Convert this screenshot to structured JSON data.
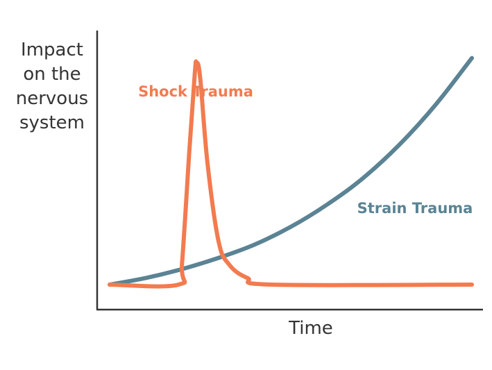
{
  "chart_data": {
    "type": "line",
    "title": "",
    "xlabel": "Time",
    "ylabel_lines": [
      "Impact",
      "on the",
      "nervous",
      "system"
    ],
    "grid": false,
    "legend": "none",
    "axes_ticks": false,
    "series": [
      {
        "name": "Shock Trauma",
        "color": "#f27b4f",
        "shape": "baseline, then a sharp spike to a peak, followed by a fast decay back to baseline",
        "points": [
          [
            0.0,
            0.0
          ],
          [
            0.19,
            0.0
          ],
          [
            0.2,
            0.1
          ],
          [
            0.22,
            0.6
          ],
          [
            0.235,
            0.95
          ],
          [
            0.24,
            1.0
          ],
          [
            0.25,
            0.93
          ],
          [
            0.27,
            0.55
          ],
          [
            0.3,
            0.2
          ],
          [
            0.33,
            0.09
          ],
          [
            0.38,
            0.03
          ],
          [
            0.45,
            0.0
          ],
          [
            1.0,
            0.0
          ]
        ]
      },
      {
        "name": "Strain Trauma",
        "color": "#5b8394",
        "shape": "exponential increase over time",
        "points": [
          [
            0.0,
            0.0
          ],
          [
            0.1,
            0.03
          ],
          [
            0.2,
            0.07
          ],
          [
            0.3,
            0.12
          ],
          [
            0.4,
            0.18
          ],
          [
            0.5,
            0.26
          ],
          [
            0.6,
            0.36
          ],
          [
            0.7,
            0.48
          ],
          [
            0.8,
            0.63
          ],
          [
            0.9,
            0.81
          ],
          [
            1.0,
            1.02
          ]
        ]
      }
    ],
    "annotations": [
      {
        "text": "Shock Trauma",
        "series": "Shock Trauma",
        "placement": "above the peak"
      },
      {
        "text": "Strain Trauma",
        "series": "Strain Trauma",
        "placement": "right, above the curve"
      }
    ],
    "axis_color": "#333333"
  }
}
